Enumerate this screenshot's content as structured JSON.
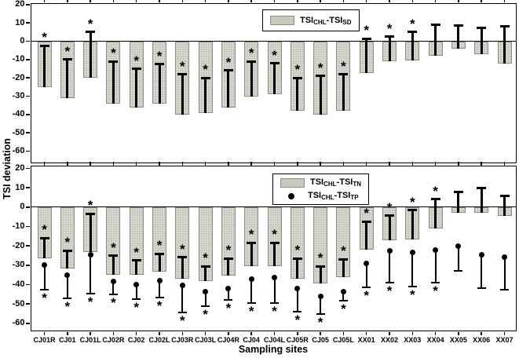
{
  "figure": {
    "y_axis_title": "TSI deviation",
    "x_axis_title": "Sampling sites",
    "significance_marker": "*",
    "colors": {
      "bar_fill": "#c8c8be",
      "bar_border": "#8e8e85",
      "error_bar": "#000000",
      "frame": "#000000",
      "background": "#ffffff"
    }
  },
  "chart_data": [
    {
      "type": "bar",
      "panel": "top",
      "title": "",
      "xlabel": "",
      "ylabel": "TSI deviation",
      "grid": false,
      "legend_position": "top-center-inside",
      "yticks": [
        20,
        10,
        0,
        -10,
        -20,
        -30,
        -40,
        -50,
        -60
      ],
      "ylim": [
        -66,
        20.6
      ],
      "categories": [
        "CJ01R",
        "CJ01",
        "CJ01L",
        "CJ02R",
        "CJ02",
        "CJ02L",
        "CJ03R",
        "CJ03L",
        "CJ04R",
        "CJ04",
        "CJ04L",
        "CJ05R",
        "CJ05",
        "CJ05L",
        "XX01",
        "XX02",
        "XX03",
        "XX04",
        "XX05",
        "XX06",
        "XX07"
      ],
      "series": [
        {
          "name": "TSICHL-TSISD",
          "label_parts": [
            "TSI",
            "CHL",
            "-TSI",
            "SD"
          ],
          "marker": "bar",
          "values": [
            -25,
            -31,
            -20,
            -34,
            -36,
            -34,
            -40,
            -39,
            -36,
            -30,
            -29,
            -38,
            -40,
            -38,
            -17.5,
            -11,
            -10.5,
            -8,
            -4,
            -7,
            -12
          ],
          "error_ends": [
            -2.5,
            -10,
            5,
            -11,
            -15,
            -12.5,
            -18,
            -20,
            -16,
            -11,
            -12,
            -20,
            -19,
            -18,
            1.5,
            2.5,
            5,
            9,
            8.5,
            7.5,
            8
          ],
          "stars": [
            true,
            true,
            true,
            true,
            true,
            true,
            true,
            true,
            true,
            true,
            true,
            true,
            true,
            true,
            true,
            true,
            true,
            false,
            false,
            false,
            false
          ]
        }
      ]
    },
    {
      "type": "bar+scatter",
      "panel": "bottom",
      "title": "",
      "xlabel": "Sampling sites",
      "ylabel": "TSI deviation",
      "grid": false,
      "legend_position": "top-center-inside",
      "yticks": [
        20,
        10,
        0,
        -10,
        -20,
        -30,
        -40,
        -50,
        -60
      ],
      "ylim": [
        -63.5,
        21.2
      ],
      "categories": [
        "CJ01R",
        "CJ01",
        "CJ01L",
        "CJ02R",
        "CJ02",
        "CJ02L",
        "CJ03R",
        "CJ03L",
        "CJ04R",
        "CJ04",
        "CJ04L",
        "CJ05R",
        "CJ05",
        "CJ05L",
        "XX01",
        "XX02",
        "XX03",
        "XX04",
        "XX05",
        "XX06",
        "XX07"
      ],
      "series": [
        {
          "name": "TSICHL-TSITN",
          "label_parts": [
            "TSI",
            "CHL",
            "-TSI",
            "TN"
          ],
          "marker": "bar",
          "values": [
            -26.5,
            -31.5,
            -23,
            -35,
            -35,
            -33.5,
            -37,
            -38,
            -35.5,
            -30.5,
            -30.5,
            -37,
            -39.5,
            -36,
            -22,
            -17,
            -16.5,
            -11,
            -3,
            -3,
            -4.5
          ],
          "error_ends": [
            -16,
            -22.5,
            -3.5,
            -25,
            -27.5,
            -24,
            -26,
            -30.5,
            -26.5,
            -18.5,
            -18.5,
            -26.5,
            -30.5,
            -27,
            -7.5,
            -4.5,
            -1.5,
            4,
            8,
            10,
            6
          ],
          "stars": [
            true,
            true,
            true,
            true,
            true,
            true,
            true,
            true,
            true,
            true,
            true,
            true,
            true,
            true,
            true,
            true,
            true,
            true,
            false,
            false,
            false
          ]
        },
        {
          "name": "TSICHL-TSITP",
          "label_parts": [
            "TSI",
            "CHL",
            "-TSI",
            "TP"
          ],
          "marker": "dot",
          "values": [
            -30,
            -35,
            -24.5,
            -38.5,
            -40,
            -38,
            -40.5,
            -43.5,
            -42,
            -37,
            -36.5,
            -42,
            -46,
            -43.5,
            -29,
            -22.5,
            -23.5,
            -22,
            -20,
            -24.5,
            -26
          ],
          "error_ends": [
            -42.5,
            -47,
            -44.5,
            -45,
            -47.5,
            -46.5,
            -54.5,
            -51,
            -48,
            -49.5,
            -49.5,
            -54,
            -55,
            -48.5,
            -41.5,
            -39,
            -41,
            -39,
            -33,
            -42,
            -42.5
          ],
          "stars": [
            true,
            true,
            true,
            true,
            true,
            true,
            true,
            true,
            true,
            true,
            true,
            true,
            true,
            true,
            true,
            true,
            true,
            true,
            false,
            false,
            false
          ]
        }
      ]
    }
  ]
}
